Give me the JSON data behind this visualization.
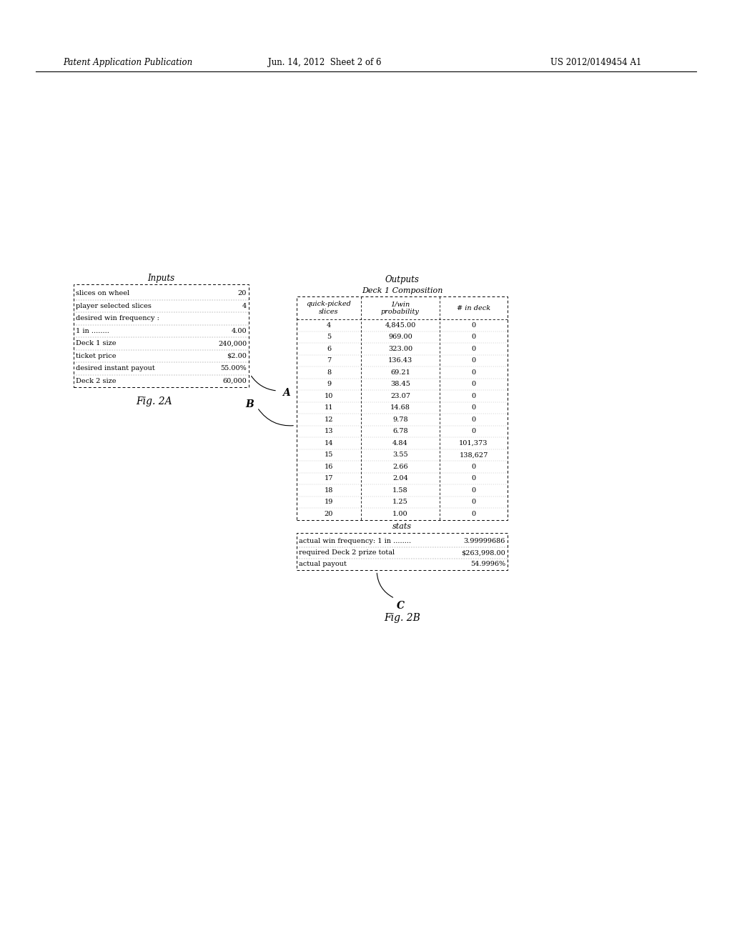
{
  "header_text": "Patent Application Publication",
  "header_date": "Jun. 14, 2012  Sheet 2 of 6",
  "header_patent": "US 2012/0149454 A1",
  "fig2a_label": "Fig. 2A",
  "fig2b_label": "Fig. 2B",
  "inputs_title": "Inputs",
  "inputs_rows": [
    [
      "slices on wheel",
      "20"
    ],
    [
      "player selected slices",
      "4"
    ],
    [
      "desired win frequency :",
      ""
    ],
    [
      "1 in ........",
      "4.00"
    ],
    [
      "Deck 1 size",
      "240,000"
    ],
    [
      "ticket price",
      "$2.00"
    ],
    [
      "desired instant payout",
      "55.00%"
    ],
    [
      "Deck 2 size",
      "60,000"
    ]
  ],
  "outputs_title": "Outputs",
  "deck1_title": "Deck 1 Composition",
  "deck1_col1_header": "quick-picked\nslices",
  "deck1_col2_header": "1/win\nprobability",
  "deck1_col3_header": "# in deck",
  "deck1_rows": [
    [
      "4",
      "4,845.00",
      "0"
    ],
    [
      "5",
      "969.00",
      "0"
    ],
    [
      "6",
      "323.00",
      "0"
    ],
    [
      "7",
      "136.43",
      "0"
    ],
    [
      "8",
      "69.21",
      "0"
    ],
    [
      "9",
      "38.45",
      "0"
    ],
    [
      "10",
      "23.07",
      "0"
    ],
    [
      "11",
      "14.68",
      "0"
    ],
    [
      "12",
      "9.78",
      "0"
    ],
    [
      "13",
      "6.78",
      "0"
    ],
    [
      "14",
      "4.84",
      "101,373"
    ],
    [
      "15",
      "3.55",
      "138,627"
    ],
    [
      "16",
      "2.66",
      "0"
    ],
    [
      "17",
      "2.04",
      "0"
    ],
    [
      "18",
      "1.58",
      "0"
    ],
    [
      "19",
      "1.25",
      "0"
    ],
    [
      "20",
      "1.00",
      "0"
    ]
  ],
  "stats_title": "stats",
  "stats_rows": [
    [
      "actual win frequency: 1 in ........",
      "3.99999686"
    ],
    [
      "required Deck 2 prize total",
      "$263,998.00"
    ],
    [
      "actual payout",
      "54.9996%"
    ]
  ],
  "label_A": "A",
  "label_B": "B",
  "label_C": "C",
  "bg_color": "#ffffff",
  "text_color": "#000000",
  "font_size": 7.0,
  "title_font_size": 8.5
}
